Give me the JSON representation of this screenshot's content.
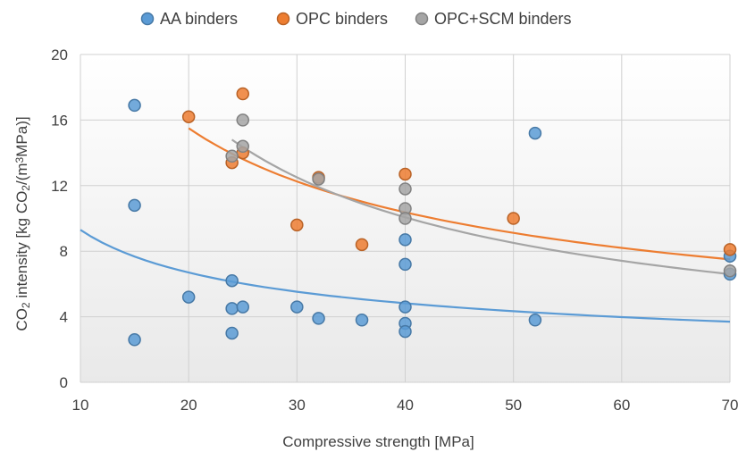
{
  "chart_data": {
    "type": "scatter",
    "title": "",
    "xlabel": "Compressive strength [MPa]",
    "ylabel": {
      "parts": [
        {
          "t": "CO"
        },
        {
          "t": "2",
          "sub": true
        },
        {
          "t": " intensity [kg CO"
        },
        {
          "t": "2",
          "sub": true
        },
        {
          "t": "/(m"
        },
        {
          "t": "3",
          "sup": true
        },
        {
          "t": "MPa)]"
        }
      ]
    },
    "xlim": [
      10,
      70
    ],
    "ylim": [
      0,
      20
    ],
    "xticks": [
      10,
      20,
      30,
      40,
      50,
      60,
      70
    ],
    "yticks": [
      0,
      4,
      8,
      12,
      16,
      20
    ],
    "grid": true,
    "legend_position": "top",
    "series": [
      {
        "name": "AA binders",
        "color": "#5B9BD5",
        "points": [
          [
            15,
            16.9
          ],
          [
            15,
            10.8
          ],
          [
            15,
            2.6
          ],
          [
            20,
            5.2
          ],
          [
            24,
            6.2
          ],
          [
            24,
            4.5
          ],
          [
            24,
            3.0
          ],
          [
            25,
            4.6
          ],
          [
            30,
            4.6
          ],
          [
            32,
            3.9
          ],
          [
            36,
            3.8
          ],
          [
            40,
            8.7
          ],
          [
            40,
            7.2
          ],
          [
            40,
            4.6
          ],
          [
            40,
            3.6
          ],
          [
            40,
            3.1
          ],
          [
            52,
            15.2
          ],
          [
            52,
            3.8
          ],
          [
            70,
            6.6
          ],
          [
            70,
            7.7
          ]
        ],
        "trend": {
          "x": [
            10,
            70
          ],
          "y_at_10": 9.3,
          "y_at_70": 3.7
        }
      },
      {
        "name": "OPC binders",
        "color": "#ED7D31",
        "points": [
          [
            20,
            16.2
          ],
          [
            24,
            13.4
          ],
          [
            25,
            17.6
          ],
          [
            25,
            14.0
          ],
          [
            30,
            9.6
          ],
          [
            32,
            12.5
          ],
          [
            36,
            8.4
          ],
          [
            40,
            12.7
          ],
          [
            50,
            10.0
          ],
          [
            70,
            8.1
          ]
        ],
        "trend": {
          "x": [
            20,
            70
          ],
          "y_at_20": 15.5,
          "y_at_70": 7.5
        }
      },
      {
        "name": "OPC+SCM binders",
        "color": "#A5A5A5",
        "points": [
          [
            24,
            13.8
          ],
          [
            25,
            16.0
          ],
          [
            25,
            14.4
          ],
          [
            32,
            12.4
          ],
          [
            40,
            11.8
          ],
          [
            40,
            10.6
          ],
          [
            40,
            10.0
          ],
          [
            70,
            6.8
          ]
        ],
        "trend": {
          "x": [
            24,
            70
          ],
          "y_at_24": 14.8,
          "y_at_70": 6.6
        }
      }
    ]
  }
}
